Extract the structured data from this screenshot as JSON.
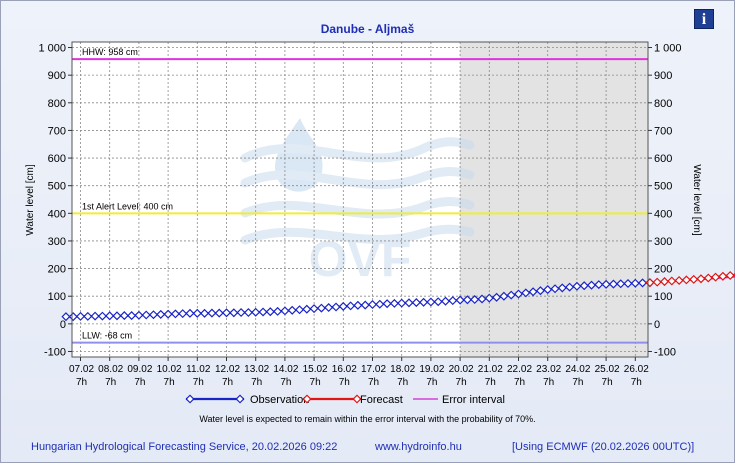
{
  "chart_data": {
    "type": "line",
    "title": "Danube - Aljmaš",
    "ylabel_left": "Water level [cm]",
    "ylabel_right": "Water level [cm]",
    "ylim": [
      -100,
      1000
    ],
    "yticks": [
      -100,
      0,
      100,
      200,
      300,
      400,
      500,
      600,
      700,
      800,
      900,
      1000
    ],
    "ytick_labels": [
      "-100",
      "0",
      "100",
      "200",
      "300",
      "400",
      "500",
      "600",
      "700",
      "800",
      "900",
      "1 000"
    ],
    "xticks": [
      "07.02",
      "08.02",
      "09.02",
      "10.02",
      "11.02",
      "12.02",
      "13.02",
      "14.02",
      "15.02",
      "16.02",
      "17.02",
      "18.02",
      "19.02",
      "20.02",
      "21.02",
      "22.02",
      "23.02",
      "24.02",
      "25.02",
      "26.02"
    ],
    "xtick_sublabel": "7h",
    "grid": true,
    "forecast_shade_from": "20.02",
    "reference_lines": [
      {
        "label": "HHW: 958 cm",
        "value": 958,
        "color": "#e033e0"
      },
      {
        "label": "1st Alert Level: 400 cm",
        "value": 400,
        "color": "#f0ee30"
      },
      {
        "label": "LLW: -68 cm",
        "value": -68,
        "color": "#8f8ff0"
      }
    ],
    "series": [
      {
        "name": "Observation",
        "color": "#1a25c8",
        "x_start": -0.5,
        "step": 0.25,
        "values": [
          26,
          26,
          27,
          27,
          28,
          28,
          29,
          29,
          30,
          30,
          31,
          32,
          33,
          34,
          35,
          36,
          37,
          38,
          38,
          38,
          39,
          39,
          40,
          40,
          41,
          41,
          42,
          43,
          44,
          45,
          47,
          49,
          51,
          53,
          55,
          57,
          59,
          61,
          63,
          65,
          67,
          68,
          70,
          71,
          73,
          74,
          75,
          76,
          77,
          78,
          79,
          80,
          82,
          84,
          86,
          87,
          88,
          90,
          93,
          96,
          100,
          104,
          108,
          112,
          116,
          120,
          124,
          127,
          130,
          133,
          136,
          138,
          140,
          142,
          143,
          144,
          145,
          146,
          147,
          148,
          149
        ]
      },
      {
        "name": "Forecast",
        "color": "#e01515",
        "x_start": 19.5,
        "step": 0.25,
        "values": [
          149,
          151,
          153,
          155,
          157,
          159,
          161,
          163,
          166,
          169,
          172,
          175,
          177,
          179,
          181,
          183,
          185,
          187,
          189,
          190,
          190,
          189,
          187,
          185,
          182,
          179,
          176,
          173,
          171,
          170,
          169
        ]
      },
      {
        "name": "Error interval",
        "color": "#d020d0",
        "x_start": 19.5,
        "step": 0.25,
        "upper": [
          149,
          151,
          153,
          156,
          158,
          161,
          163,
          166,
          169,
          172,
          175,
          178,
          180,
          183,
          185,
          187,
          189,
          191,
          193,
          195,
          196,
          195,
          194,
          192,
          190,
          188,
          186,
          185,
          184,
          183,
          183
        ],
        "lower": [
          149,
          151,
          153,
          154,
          156,
          157,
          159,
          160,
          162,
          164,
          166,
          168,
          170,
          172,
          174,
          176,
          178,
          180,
          182,
          183,
          182,
          180,
          177,
          174,
          170,
          165,
          161,
          157,
          153,
          149,
          146
        ]
      }
    ],
    "note": "Water level is expected to remain within the error interval with the probability of 70%.",
    "watermark": "OVF"
  },
  "footer": {
    "service": "Hungarian Hydrological Forecasting Service, 20.02.2026 09:22",
    "url": "www.hydroinfo.hu",
    "model": "[Using ECMWF (20.02.2026  00UTC)]"
  },
  "info_icon": "info-icon"
}
